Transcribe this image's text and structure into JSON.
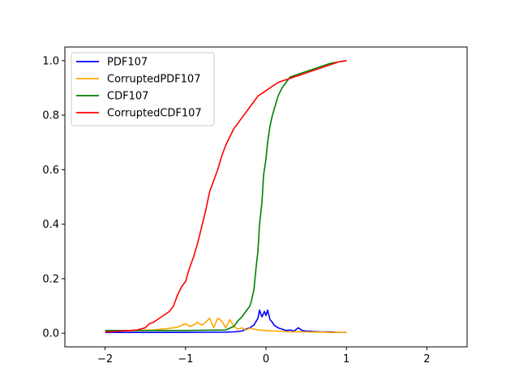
{
  "chart_data": {
    "type": "line",
    "title": "",
    "xlabel": "",
    "ylabel": "",
    "xlim": [
      -2.5,
      2.5
    ],
    "ylim": [
      -0.05,
      1.05
    ],
    "x_ticks": [
      -2,
      -1,
      0,
      1,
      2
    ],
    "x_tick_labels": [
      "−2",
      "−1",
      "0",
      "1",
      "2"
    ],
    "y_ticks": [
      0.0,
      0.2,
      0.4,
      0.6,
      0.8,
      1.0
    ],
    "y_tick_labels": [
      "0.0",
      "0.2",
      "0.4",
      "0.6",
      "0.8",
      "1.0"
    ],
    "grid": false,
    "legend_position": "top-left",
    "series": [
      {
        "name": "PDF107",
        "color": "#0000ff",
        "x": [
          -2.0,
          -1.5,
          -1.0,
          -0.5,
          -0.4,
          -0.3,
          -0.25,
          -0.2,
          -0.15,
          -0.1,
          -0.08,
          -0.05,
          -0.02,
          0.0,
          0.02,
          0.05,
          0.08,
          0.1,
          0.15,
          0.2,
          0.25,
          0.3,
          0.35,
          0.4,
          0.45,
          0.5,
          0.6,
          0.7,
          0.8,
          0.9,
          1.0
        ],
        "y": [
          0.003,
          0.003,
          0.003,
          0.004,
          0.005,
          0.008,
          0.015,
          0.02,
          0.03,
          0.055,
          0.085,
          0.06,
          0.08,
          0.065,
          0.085,
          0.05,
          0.04,
          0.03,
          0.02,
          0.015,
          0.01,
          0.012,
          0.008,
          0.02,
          0.01,
          0.008,
          0.006,
          0.005,
          0.005,
          0.003,
          0.003
        ]
      },
      {
        "name": "CorruptedPDF107",
        "color": "#ffa500",
        "x": [
          -2.0,
          -1.8,
          -1.6,
          -1.4,
          -1.3,
          -1.2,
          -1.1,
          -1.0,
          -0.95,
          -0.9,
          -0.85,
          -0.8,
          -0.75,
          -0.7,
          -0.65,
          -0.6,
          -0.55,
          -0.5,
          -0.45,
          -0.4,
          -0.35,
          -0.3,
          -0.25,
          -0.2,
          -0.1,
          0.0,
          0.1,
          0.2,
          0.3,
          0.4,
          0.5,
          0.6,
          0.7,
          0.8,
          0.9,
          1.0
        ],
        "y": [
          0.005,
          0.008,
          0.01,
          0.012,
          0.015,
          0.018,
          0.022,
          0.035,
          0.025,
          0.03,
          0.04,
          0.03,
          0.04,
          0.055,
          0.02,
          0.055,
          0.045,
          0.02,
          0.05,
          0.025,
          0.015,
          0.02,
          0.012,
          0.018,
          0.012,
          0.01,
          0.008,
          0.007,
          0.005,
          0.006,
          0.005,
          0.004,
          0.004,
          0.003,
          0.003,
          0.003
        ]
      },
      {
        "name": "CDF107",
        "color": "#008000",
        "x": [
          -2.0,
          -1.0,
          -0.5,
          -0.4,
          -0.35,
          -0.3,
          -0.25,
          -0.2,
          -0.18,
          -0.15,
          -0.12,
          -0.1,
          -0.08,
          -0.05,
          -0.03,
          0.0,
          0.02,
          0.05,
          0.08,
          0.1,
          0.15,
          0.2,
          0.25,
          0.3,
          0.4,
          0.5,
          0.6,
          0.7,
          0.8,
          0.9,
          1.0
        ],
        "y": [
          0.01,
          0.01,
          0.012,
          0.025,
          0.045,
          0.06,
          0.08,
          0.1,
          0.12,
          0.16,
          0.25,
          0.3,
          0.4,
          0.48,
          0.58,
          0.64,
          0.7,
          0.76,
          0.8,
          0.82,
          0.87,
          0.9,
          0.92,
          0.94,
          0.95,
          0.96,
          0.97,
          0.98,
          0.99,
          0.995,
          1.0
        ]
      },
      {
        "name": "CorruptedCDF107",
        "color": "#ff0000",
        "x": [
          -2.0,
          -1.8,
          -1.6,
          -1.5,
          -1.45,
          -1.4,
          -1.3,
          -1.2,
          -1.15,
          -1.1,
          -1.05,
          -1.0,
          -0.95,
          -0.9,
          -0.85,
          -0.8,
          -0.75,
          -0.7,
          -0.65,
          -0.6,
          -0.55,
          -0.5,
          -0.45,
          -0.4,
          -0.35,
          -0.3,
          -0.25,
          -0.2,
          -0.15,
          -0.1,
          -0.05,
          0.0,
          0.05,
          0.1,
          0.15,
          0.2,
          0.25,
          0.3,
          0.4,
          0.5,
          0.6,
          0.7,
          0.8,
          0.9,
          1.0
        ],
        "y": [
          0.005,
          0.008,
          0.012,
          0.02,
          0.035,
          0.04,
          0.06,
          0.08,
          0.1,
          0.14,
          0.17,
          0.19,
          0.24,
          0.28,
          0.33,
          0.39,
          0.45,
          0.52,
          0.56,
          0.6,
          0.65,
          0.69,
          0.72,
          0.75,
          0.77,
          0.79,
          0.81,
          0.83,
          0.85,
          0.87,
          0.88,
          0.89,
          0.9,
          0.91,
          0.92,
          0.925,
          0.93,
          0.935,
          0.945,
          0.955,
          0.965,
          0.975,
          0.985,
          0.995,
          1.0
        ]
      }
    ]
  }
}
